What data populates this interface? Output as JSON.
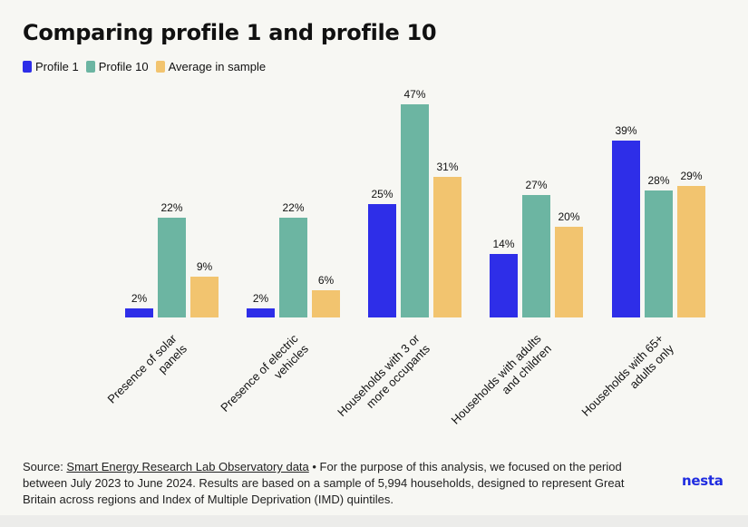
{
  "title": "Comparing profile 1 and profile 10",
  "legend": [
    {
      "label": "Profile 1",
      "color": "#2e2ee8"
    },
    {
      "label": "Profile 10",
      "color": "#6cb5a2"
    },
    {
      "label": "Average in sample",
      "color": "#f2c46f"
    }
  ],
  "chart_data": {
    "type": "bar",
    "title": "Comparing profile 1 and profile 10",
    "categories": [
      [
        "Presence of solar",
        "panels"
      ],
      [
        "Presence of electric",
        "vehicles"
      ],
      [
        "Households with 3 or",
        "more occupants"
      ],
      [
        "Households with adults",
        "and children"
      ],
      [
        "Households with 65+",
        "adults only"
      ]
    ],
    "series": [
      {
        "name": "Profile 1",
        "color": "#2e2ee8",
        "values": [
          2,
          2,
          25,
          14,
          39
        ],
        "labels": [
          "2%",
          "2%",
          "25%",
          "14%",
          "39%"
        ]
      },
      {
        "name": "Profile 10",
        "color": "#6cb5a2",
        "values": [
          22,
          22,
          47,
          27,
          28
        ],
        "labels": [
          "22%",
          "22%",
          "47%",
          "27%",
          "28%"
        ]
      },
      {
        "name": "Average in sample",
        "color": "#f2c46f",
        "values": [
          9,
          6,
          31,
          20,
          29
        ],
        "labels": [
          "9%",
          "6%",
          "31%",
          "20%",
          "29%"
        ]
      }
    ],
    "ylim": [
      0,
      47
    ],
    "grid": false,
    "legend_position": "top-left"
  },
  "footer": {
    "prefix": "Source: ",
    "link_text": "Smart Energy Research Lab Observatory data",
    "text": " • For the purpose of this analysis, we focused on the period between July 2023 to June 2024. Results are based on a sample of 5,994 households, designed to represent Great Britain across regions and Index of Multiple Deprivation (IMD) quintiles."
  },
  "logo": "nesta"
}
